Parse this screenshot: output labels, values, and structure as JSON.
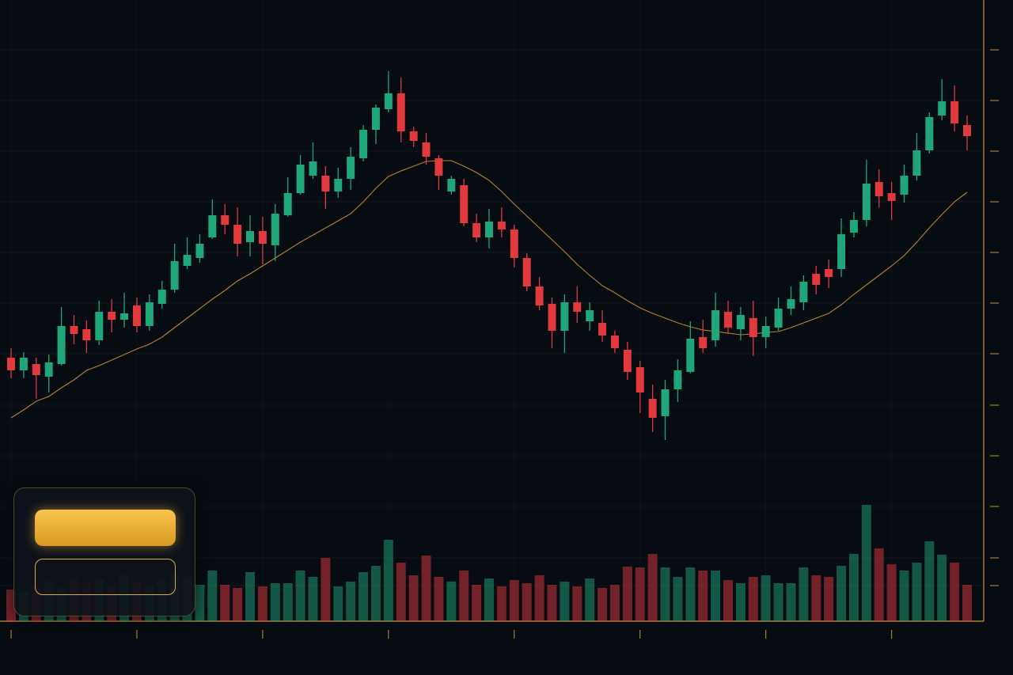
{
  "chart_data": {
    "type": "candlestick",
    "open": [
      333,
      317,
      325,
      309,
      325,
      373,
      369,
      355,
      391,
      381,
      399,
      373,
      401,
      419,
      449,
      459,
      485,
      513,
      501,
      479,
      493,
      475,
      513,
      541,
      563,
      563,
      543,
      559,
      585,
      621,
      647,
      667,
      619,
      605,
      585,
      543,
      551,
      503,
      485,
      505,
      495,
      459,
      423,
      401,
      367,
      403,
      379,
      377,
      361,
      343,
      321,
      281,
      259,
      293,
      315,
      359,
      355,
      391,
      369,
      383,
      359,
      371,
      395,
      403,
      439,
      445,
      445,
      491,
      507,
      555,
      541,
      539,
      563,
      595,
      639,
      657,
      627
    ],
    "high": [
      345,
      340,
      333,
      337,
      397,
      387,
      380,
      405,
      407,
      415,
      409,
      413,
      430,
      477,
      485,
      489,
      533,
      527,
      523,
      513,
      511,
      527,
      561,
      589,
      605,
      575,
      573,
      599,
      627,
      653,
      695,
      687,
      625,
      617,
      589,
      563,
      559,
      515,
      521,
      523,
      501,
      465,
      435,
      409,
      413,
      423,
      403,
      393,
      367,
      353,
      329,
      299,
      305,
      331,
      379,
      381,
      415,
      405,
      397,
      405,
      385,
      409,
      423,
      437,
      449,
      457,
      509,
      517,
      583,
      571,
      555,
      577,
      617,
      643,
      685,
      677,
      639
    ],
    "low": [
      307,
      307,
      281,
      289,
      323,
      350,
      339,
      349,
      365,
      371,
      365,
      367,
      395,
      415,
      445,
      453,
      483,
      489,
      461,
      461,
      451,
      455,
      511,
      539,
      559,
      521,
      535,
      545,
      581,
      603,
      643,
      605,
      599,
      577,
      545,
      539,
      499,
      479,
      471,
      485,
      447,
      417,
      393,
      345,
      339,
      377,
      367,
      353,
      339,
      305,
      263,
      239,
      229,
      277,
      313,
      339,
      347,
      363,
      355,
      335,
      345,
      367,
      387,
      393,
      413,
      421,
      435,
      485,
      499,
      523,
      507,
      529,
      557,
      591,
      633,
      619,
      595
    ],
    "close": [
      317,
      333,
      311,
      327,
      373,
      363,
      355,
      391,
      381,
      389,
      373,
      403,
      419,
      455,
      463,
      477,
      513,
      501,
      477,
      493,
      477,
      515,
      541,
      577,
      581,
      543,
      559,
      587,
      621,
      649,
      667,
      619,
      607,
      587,
      563,
      559,
      503,
      485,
      505,
      495,
      459,
      423,
      399,
      367,
      403,
      391,
      393,
      361,
      345,
      315,
      289,
      257,
      293,
      317,
      357,
      345,
      393,
      371,
      387,
      359,
      373,
      395,
      407,
      429,
      425,
      435,
      489,
      507,
      553,
      537,
      531,
      563,
      595,
      637,
      657,
      629,
      613
    ],
    "volume": [
      40,
      38,
      44,
      50,
      42,
      55,
      48,
      52,
      46,
      58,
      50,
      44,
      52,
      60,
      56,
      46,
      64,
      46,
      42,
      62,
      44,
      48,
      48,
      64,
      56,
      80,
      44,
      50,
      62,
      70,
      103,
      74,
      58,
      83,
      56,
      50,
      64,
      46,
      54,
      44,
      52,
      48,
      58,
      46,
      50,
      44,
      54,
      42,
      46,
      69,
      68,
      85,
      68,
      56,
      68,
      64,
      64,
      52,
      48,
      56,
      58,
      48,
      48,
      68,
      58,
      56,
      70,
      85,
      147,
      92,
      72,
      64,
      74,
      101,
      84,
      74,
      46
    ],
    "moving_average": {
      "color": "#c8922e",
      "values": [
        257,
        267,
        278,
        284,
        295,
        305,
        317,
        323,
        330,
        337,
        344,
        350,
        359,
        371,
        383,
        395,
        407,
        418,
        430,
        439,
        449,
        459,
        469,
        479,
        488,
        497,
        506,
        515,
        530,
        547,
        562,
        569,
        575,
        581,
        582,
        582,
        575,
        567,
        557,
        543,
        527,
        512,
        497,
        482,
        467,
        451,
        437,
        424,
        415,
        405,
        396,
        389,
        383,
        377,
        372,
        368,
        366,
        364,
        362,
        363,
        365,
        366,
        371,
        377,
        383,
        389,
        400,
        413,
        425,
        437,
        449,
        462,
        479,
        497,
        514,
        530,
        542
      ]
    },
    "up_color": "#1fa67a",
    "down_color": "#e0393e",
    "axis_color": "#c8963a",
    "ylim": [
      0,
      785
    ],
    "yticks": [
      722,
      658,
      594,
      530,
      466,
      402,
      338,
      273,
      209,
      145,
      80,
      45
    ],
    "xticks": [
      0,
      10,
      20,
      30,
      40,
      50,
      60,
      70
    ],
    "grid": true
  }
}
